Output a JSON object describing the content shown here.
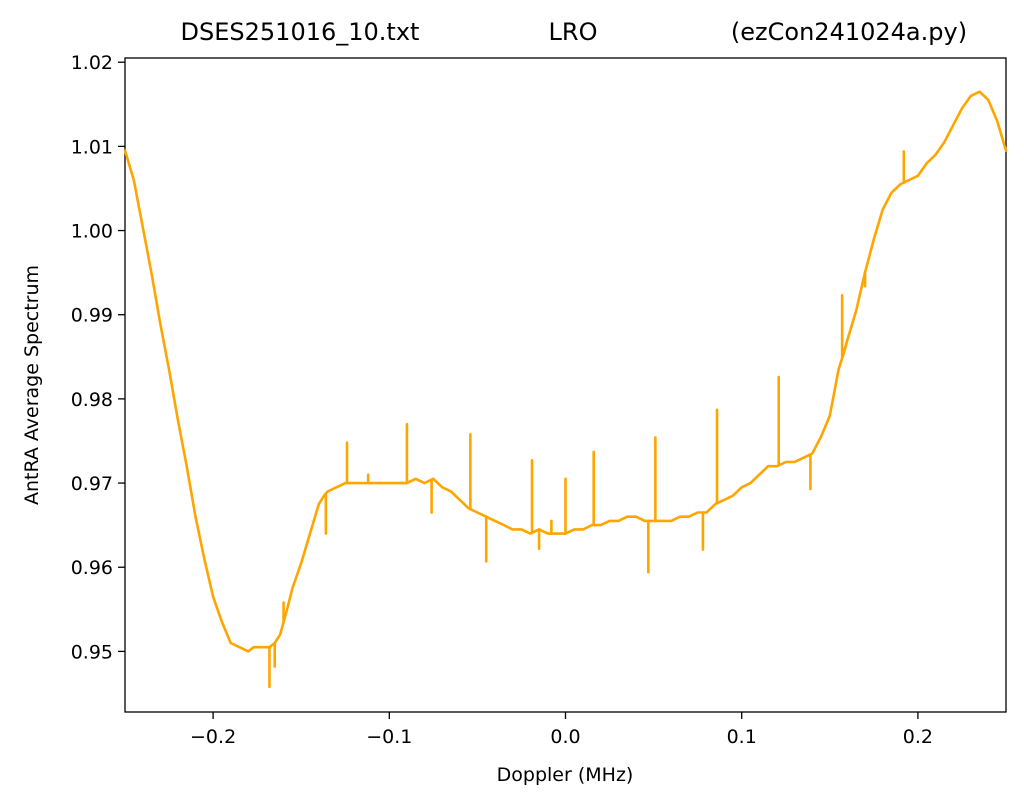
{
  "chart_data": {
    "type": "line",
    "title_parts": {
      "left": "DSES251016_10.txt",
      "center": "LRO",
      "right": "(ezCon241024a.py)"
    },
    "xlabel": "Doppler (MHz)",
    "ylabel": "AntRA Average Spectrum",
    "xlim": [
      -0.25,
      0.25
    ],
    "ylim": [
      0.9428,
      1.0205
    ],
    "x_ticks": [
      -0.2,
      -0.1,
      0.0,
      0.1,
      0.2
    ],
    "x_tick_labels": [
      "−0.2",
      "−0.1",
      "0.0",
      "0.1",
      "0.2"
    ],
    "y_ticks": [
      0.95,
      0.96,
      0.97,
      0.98,
      0.99,
      1.0,
      1.01,
      1.02
    ],
    "y_tick_labels": [
      "0.95",
      "0.96",
      "0.97",
      "0.98",
      "0.99",
      "1.00",
      "1.01",
      "1.02"
    ],
    "grid": false,
    "legend": "none",
    "line_color": "#ffa500",
    "series": [
      {
        "x": [
          -0.25,
          -0.245,
          -0.24,
          -0.235,
          -0.23,
          -0.225,
          -0.22,
          -0.215,
          -0.21,
          -0.205,
          -0.2,
          -0.195,
          -0.19,
          -0.185,
          -0.18,
          -0.177,
          -0.174,
          -0.171,
          -0.168,
          -0.165,
          -0.162,
          -0.158,
          -0.155,
          -0.15,
          -0.145,
          -0.14,
          -0.137,
          -0.135,
          -0.13,
          -0.125,
          -0.12,
          -0.11,
          -0.1,
          -0.09,
          -0.085,
          -0.08,
          -0.075,
          -0.07,
          -0.065,
          -0.06,
          -0.055,
          -0.05,
          -0.045,
          -0.04,
          -0.035,
          -0.03,
          -0.025,
          -0.02,
          -0.015,
          -0.01,
          -0.005,
          0.0,
          0.005,
          0.01,
          0.015,
          0.02,
          0.025,
          0.03,
          0.035,
          0.04,
          0.045,
          0.05,
          0.055,
          0.06,
          0.065,
          0.07,
          0.075,
          0.08,
          0.085,
          0.09,
          0.095,
          0.1,
          0.105,
          0.11,
          0.115,
          0.12,
          0.125,
          0.13,
          0.135,
          0.14,
          0.145,
          0.15,
          0.155,
          0.158,
          0.16,
          0.165,
          0.17,
          0.175,
          0.18,
          0.185,
          0.19,
          0.195,
          0.2,
          0.205,
          0.21,
          0.215,
          0.22,
          0.225,
          0.23,
          0.235,
          0.24,
          0.245,
          0.25
        ],
        "y": [
          1.0095,
          1.006,
          1.0005,
          0.995,
          0.989,
          0.9835,
          0.9775,
          0.972,
          0.966,
          0.961,
          0.9565,
          0.9535,
          0.951,
          0.9505,
          0.95,
          0.9505,
          0.9505,
          0.9505,
          0.9505,
          0.951,
          0.952,
          0.955,
          0.9575,
          0.9605,
          0.964,
          0.9675,
          0.9685,
          0.969,
          0.9695,
          0.97,
          0.97,
          0.97,
          0.97,
          0.97,
          0.9705,
          0.97,
          0.9705,
          0.9695,
          0.969,
          0.968,
          0.967,
          0.9665,
          0.966,
          0.9655,
          0.965,
          0.9645,
          0.9645,
          0.964,
          0.9645,
          0.964,
          0.964,
          0.964,
          0.9645,
          0.9645,
          0.965,
          0.965,
          0.9655,
          0.9655,
          0.966,
          0.966,
          0.9655,
          0.9655,
          0.9655,
          0.9655,
          0.966,
          0.966,
          0.9665,
          0.9665,
          0.9675,
          0.968,
          0.9685,
          0.9695,
          0.97,
          0.971,
          0.972,
          0.972,
          0.9725,
          0.9725,
          0.973,
          0.9735,
          0.9755,
          0.978,
          0.9835,
          0.9855,
          0.987,
          0.9905,
          0.995,
          0.999,
          1.0025,
          1.0045,
          1.0055,
          1.006,
          1.0065,
          1.008,
          1.009,
          1.0105,
          1.0125,
          1.0145,
          1.016,
          1.0165,
          1.0155,
          1.013,
          1.0095
        ]
      }
    ],
    "spikes": [
      {
        "x": -0.168,
        "y": 0.9458
      },
      {
        "x": -0.165,
        "y": 0.9482
      },
      {
        "x": -0.16,
        "y": 0.9558
      },
      {
        "x": -0.136,
        "y": 0.964
      },
      {
        "x": -0.124,
        "y": 0.9748
      },
      {
        "x": -0.112,
        "y": 0.971
      },
      {
        "x": -0.09,
        "y": 0.977
      },
      {
        "x": -0.076,
        "y": 0.9665
      },
      {
        "x": -0.054,
        "y": 0.9758
      },
      {
        "x": -0.045,
        "y": 0.9607
      },
      {
        "x": -0.019,
        "y": 0.9727
      },
      {
        "x": -0.015,
        "y": 0.9622
      },
      {
        "x": -0.008,
        "y": 0.9655
      },
      {
        "x": 0.0,
        "y": 0.9705
      },
      {
        "x": 0.016,
        "y": 0.9737
      },
      {
        "x": 0.047,
        "y": 0.9594
      },
      {
        "x": 0.051,
        "y": 0.9754
      },
      {
        "x": 0.078,
        "y": 0.9621
      },
      {
        "x": 0.086,
        "y": 0.9787
      },
      {
        "x": 0.121,
        "y": 0.9826
      },
      {
        "x": 0.139,
        "y": 0.9693
      },
      {
        "x": 0.157,
        "y": 0.9923
      },
      {
        "x": 0.17,
        "y": 0.9934
      },
      {
        "x": 0.192,
        "y": 1.0094
      }
    ]
  }
}
